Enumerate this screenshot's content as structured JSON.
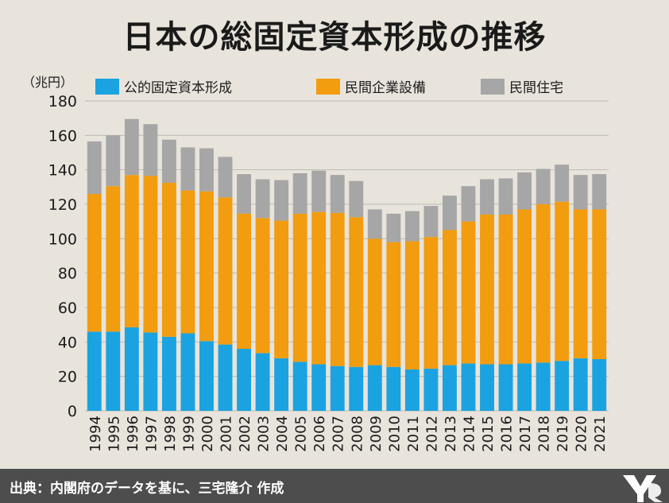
{
  "header": {
    "title": "日本の総固定資本形成の推移",
    "unit": "（兆円）"
  },
  "footer": {
    "source": "出典：内閣府のデータを基に、三宅隆介 作成"
  },
  "colors": {
    "public": "#1aa3e0",
    "equipment": "#f29c0f",
    "housing": "#a6a6a6",
    "grid": "#bdbab3",
    "background": "#e8e4dc",
    "footer": "#4d4d4d"
  },
  "chart_data": {
    "type": "bar",
    "stacked": true,
    "categories": [
      "1994",
      "1995",
      "1996",
      "1997",
      "1998",
      "1999",
      "2000",
      "2001",
      "2002",
      "2003",
      "2004",
      "2005",
      "2006",
      "2007",
      "2008",
      "2009",
      "2010",
      "2011",
      "2012",
      "2013",
      "2014",
      "2015",
      "2016",
      "2017",
      "2018",
      "2019",
      "2020",
      "2021"
    ],
    "series": [
      {
        "name": "公的固定資本形成",
        "color": "#1aa3e0",
        "values": [
          46,
          46,
          48.5,
          45.5,
          43,
          45,
          40.5,
          38.5,
          36,
          33.5,
          30.5,
          28.5,
          27,
          26,
          25.5,
          26.5,
          25.5,
          24,
          24.5,
          26.5,
          27.5,
          27,
          27,
          27.5,
          28,
          29,
          30.5,
          30
        ]
      },
      {
        "name": "民間企業設備",
        "color": "#f29c0f",
        "values": [
          80,
          84.5,
          88.5,
          91,
          89.5,
          83,
          87,
          85.5,
          78.5,
          78.5,
          80,
          86,
          88.5,
          89,
          87,
          73.5,
          72.5,
          74.5,
          76.5,
          78.5,
          82.5,
          87,
          87,
          89.5,
          92,
          92.5,
          86.5,
          87
        ]
      },
      {
        "name": "民間住宅",
        "color": "#a6a6a6",
        "values": [
          30.5,
          29.5,
          32.5,
          30,
          25,
          25,
          25,
          23.5,
          23,
          22.5,
          23.5,
          23.5,
          24,
          22,
          21,
          17,
          16.5,
          17.5,
          18,
          20,
          20.5,
          20.5,
          21,
          21.5,
          20.5,
          21.5,
          20,
          20.5
        ]
      }
    ],
    "title": "日本の総固定資本形成の推移",
    "ylabel": "（兆円）",
    "ylim": [
      0,
      180
    ],
    "yticks": [
      0,
      20,
      40,
      60,
      80,
      100,
      120,
      140,
      160,
      180
    ],
    "grid": true,
    "legend_position": "top"
  }
}
